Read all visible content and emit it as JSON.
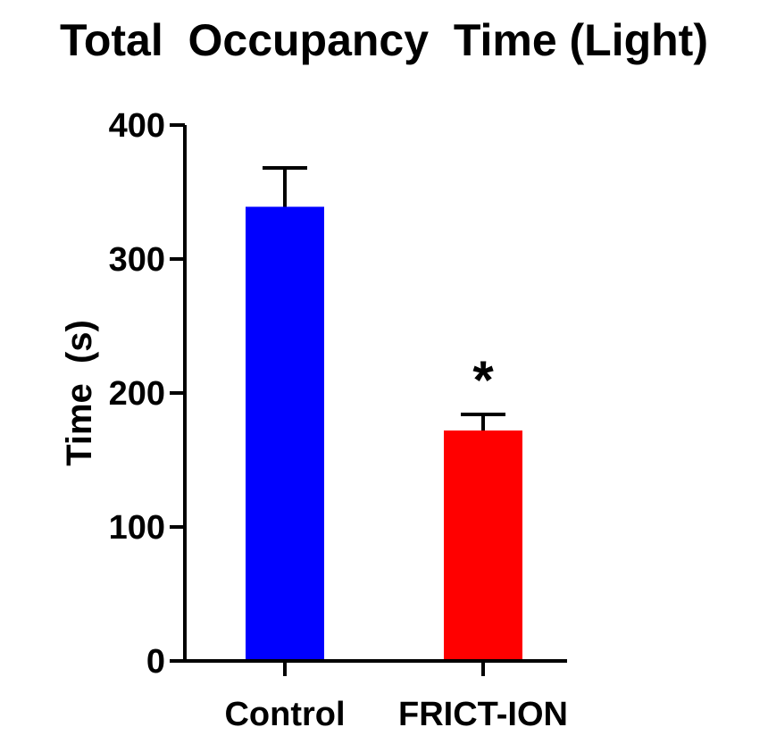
{
  "chart_data": {
    "type": "bar",
    "title": "Total  Occupancy  Time (Light)",
    "xlabel": "",
    "ylabel": "Time  (s)",
    "ylim": [
      0,
      400
    ],
    "yticks": [
      0,
      100,
      200,
      300,
      400
    ],
    "categories": [
      "Control",
      "FRICT-ION"
    ],
    "values": [
      339,
      172
    ],
    "errors": [
      29,
      12
    ],
    "colors": [
      "#0000ff",
      "#ff0000"
    ],
    "annotations": [
      "",
      "*"
    ],
    "grid": false,
    "legend": "none"
  }
}
